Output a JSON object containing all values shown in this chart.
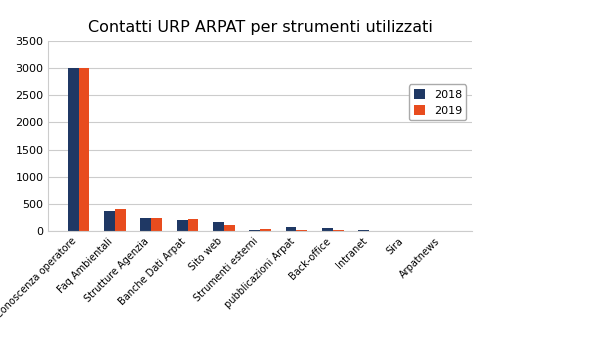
{
  "title": "Contatti URP ARPAT per strumenti utilizzati",
  "categories": [
    "Conoscenza operatore",
    "Faq Ambientali",
    "Strutture Agenzia",
    "Banche Dati Arpat",
    "Sito web",
    "Strumenti esterni",
    "pubblicazioni Arpat",
    "Back-office",
    "Intranet",
    "Sira",
    "Arpatnews"
  ],
  "values_2018": [
    3000,
    370,
    240,
    210,
    160,
    30,
    80,
    55,
    30,
    5,
    3
  ],
  "values_2019": [
    3000,
    400,
    240,
    230,
    105,
    35,
    30,
    20,
    5,
    3,
    3
  ],
  "color_2018": "#1F3864",
  "color_2019": "#E84C1E",
  "legend_2018": "2018",
  "legend_2019": "2019",
  "ylim": [
    0,
    3500
  ],
  "yticks": [
    0,
    500,
    1000,
    1500,
    2000,
    2500,
    3000,
    3500
  ],
  "background_color": "#FFFFFF"
}
